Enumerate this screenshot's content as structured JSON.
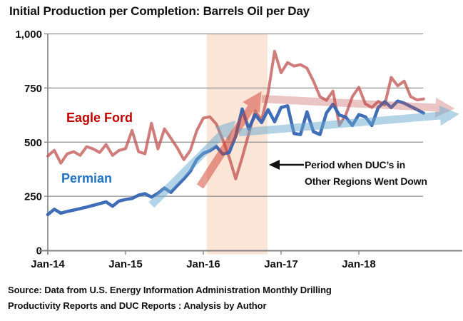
{
  "title": "Initial Production per Completion: Barrels Oil per Day",
  "series_labels": {
    "eagle_ford": "Eagle Ford",
    "permian": "Permian"
  },
  "annotation": {
    "line1": "Period when DUC’s in",
    "line2": "Other Regions Went Down"
  },
  "source": {
    "line1": "Source: Data from U.S. Energy Information Administration  Monthly Drilling",
    "line2": "Productivity Reports and DUC Reports : Analysis by Author"
  },
  "colors": {
    "eagle_ford_line": "rgba(192,80,77,0.75)",
    "permian_line": "rgba(49,98,177,0.93)",
    "eagle_ford_label": "#c00000",
    "permian_label": "#2272c5",
    "shaded_region": "#fbe5d6",
    "gridline": "#8f8f8f",
    "axis": "#808080",
    "arrow_blue": "rgba(104,169,208,0.50)",
    "arrow_red": "rgba(208,62,48,0.50)",
    "arrow_pink": "rgba(192,80,77,0.33)",
    "annotation_arrow": "#111111"
  },
  "chart_data": {
    "type": "line",
    "title": "Initial Production per Completion: Barrels Oil per Day",
    "xlabel": "",
    "ylabel": "Barrels Oil per Day",
    "ylim": [
      0,
      1000
    ],
    "grid": true,
    "legend": "inline-labels",
    "y_ticks": [
      {
        "value": 1000,
        "label": "1,000"
      },
      {
        "value": 750,
        "label": "750"
      },
      {
        "value": 500,
        "label": "500"
      },
      {
        "value": 250,
        "label": "250"
      },
      {
        "value": 0,
        "label": "0"
      }
    ],
    "x_ticks": [
      {
        "month_index": 0,
        "label": "Jan-14"
      },
      {
        "month_index": 12,
        "label": "Jan-15"
      },
      {
        "month_index": 24,
        "label": "Jan-16"
      },
      {
        "month_index": 36,
        "label": "Jan-17"
      },
      {
        "month_index": 48,
        "label": "Jan-18"
      }
    ],
    "months": [
      "Jan-14",
      "Feb-14",
      "Mar-14",
      "Apr-14",
      "May-14",
      "Jun-14",
      "Jul-14",
      "Aug-14",
      "Sep-14",
      "Oct-14",
      "Nov-14",
      "Dec-14",
      "Jan-15",
      "Feb-15",
      "Mar-15",
      "Apr-15",
      "May-15",
      "Jun-15",
      "Jul-15",
      "Aug-15",
      "Sep-15",
      "Oct-15",
      "Nov-15",
      "Dec-15",
      "Jan-16",
      "Feb-16",
      "Mar-16",
      "Apr-16",
      "May-16",
      "Jun-16",
      "Jul-16",
      "Aug-16",
      "Sep-16",
      "Oct-16",
      "Nov-16",
      "Dec-16",
      "Jan-17",
      "Feb-17",
      "Mar-17",
      "Apr-17",
      "May-17",
      "Jun-17",
      "Jul-17",
      "Aug-17",
      "Sep-17",
      "Oct-17",
      "Nov-17",
      "Dec-17",
      "Jan-18",
      "Feb-18",
      "Mar-18",
      "Apr-18",
      "May-18",
      "Jun-18",
      "Jul-18",
      "Aug-18",
      "Sep-18",
      "Oct-18",
      "Nov-18"
    ],
    "series": [
      {
        "name": "Eagle Ford",
        "color": "#c0504d",
        "values": [
          436,
          462,
          403,
          446,
          456,
          439,
          479,
          469,
          452,
          489,
          439,
          462,
          470,
          554,
          456,
          446,
          587,
          469,
          561,
          518,
          472,
          419,
          462,
          554,
          611,
          617,
          584,
          512,
          430,
          330,
          429,
          538,
          644,
          601,
          726,
          920,
          820,
          868,
          851,
          858,
          842,
          782,
          710,
          693,
          736,
          578,
          627,
          710,
          753,
          677,
          660,
          688,
          672,
          799,
          760,
          782,
          710,
          695,
          700
        ]
      },
      {
        "name": "Permian",
        "color": "#3162b1",
        "values": [
          165,
          190,
          172,
          180,
          186,
          193,
          200,
          208,
          216,
          224,
          204,
          228,
          235,
          240,
          255,
          262,
          246,
          264,
          288,
          268,
          300,
          330,
          365,
          420,
          448,
          460,
          480,
          445,
          452,
          528,
          653,
          561,
          627,
          590,
          650,
          594,
          660,
          668,
          540,
          535,
          640,
          548,
          535,
          635,
          675,
          625,
          615,
          577,
          627,
          617,
          577,
          660,
          687,
          660,
          690,
          680,
          665,
          650,
          634
        ]
      }
    ],
    "shaded_region": {
      "start_index": 24.55,
      "end_index": 33.9,
      "note": "highlighted period Feb-16 to Oct-16"
    },
    "trend_arrows": [
      {
        "name": "permian-rise-arrow",
        "color_key": "arrow_blue",
        "from": [
          16,
          210
        ],
        "to": [
          29,
          600
        ]
      },
      {
        "name": "eagle-ford-rise-arrow",
        "color_key": "arrow_red",
        "from": [
          23.5,
          295
        ],
        "to": [
          33,
          735
        ]
      },
      {
        "name": "eagle-ford-flat-arrow",
        "color_key": "arrow_pink",
        "from": [
          33,
          700
        ],
        "to": [
          62.8,
          655
        ]
      },
      {
        "name": "permian-flat-arrow",
        "color_key": "arrow_blue",
        "from": [
          29.5,
          545
        ],
        "to": [
          63.5,
          630
        ]
      }
    ]
  }
}
